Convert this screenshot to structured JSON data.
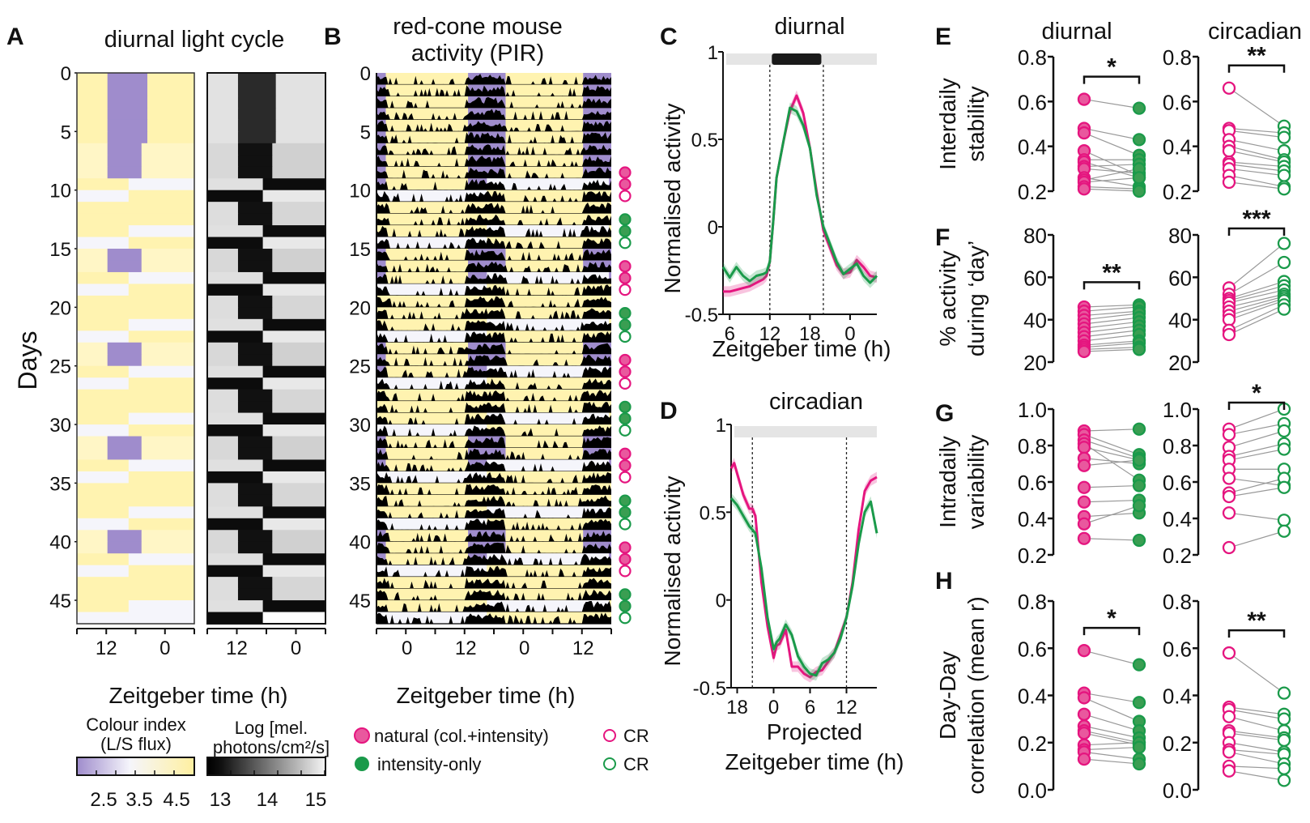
{
  "colors": {
    "magenta": "#e5157f",
    "magenta_fill": "#e9589e",
    "green": "#1a9a4a",
    "green_fill": "#3a9e52",
    "yellow": "#fff3b0",
    "purple": "#9f8ccc",
    "white_day": "#f5f5fb",
    "light_grey": "#e5e5e5",
    "dark": "#1a1a1a",
    "pair_line": "#999999"
  },
  "panelA": {
    "letter": "A",
    "title": "diurnal light cycle",
    "ylabel": "Days",
    "yticks": [
      "0",
      "5",
      "10",
      "15",
      "20",
      "25",
      "30",
      "35",
      "40",
      "45"
    ],
    "xticks": [
      "12",
      "0"
    ],
    "xlabel": "Zeitgeber time (h)",
    "colorbar1": {
      "title1": "Colour index",
      "title2": "(L/S flux)",
      "ticks": [
        "2.5",
        "3.5",
        "4.5"
      ]
    },
    "colorbar2": {
      "title1": "Log [mel.",
      "title2": "photons/cm²/s]",
      "ticks": [
        "13",
        "14",
        "15"
      ]
    }
  },
  "panelB": {
    "letter": "B",
    "title1": "red-cone mouse",
    "title2": "activity (PIR)",
    "yticks": [
      "0",
      "5",
      "10",
      "15",
      "20",
      "25",
      "30",
      "35",
      "40",
      "45"
    ],
    "xticks": [
      "0",
      "12",
      "0",
      "12"
    ],
    "xlabel": "Zeitgeber time (h)",
    "legend": {
      "natural": "natural (col.+intensity)",
      "intensity": "intensity-only",
      "cr1": "CR",
      "cr2": "CR"
    },
    "condition_markers": [
      {
        "day": 8,
        "type": "natural"
      },
      {
        "day": 9,
        "type": "natural"
      },
      {
        "day": 10,
        "type": "natural-CR"
      },
      {
        "day": 12,
        "type": "intensity"
      },
      {
        "day": 13,
        "type": "intensity"
      },
      {
        "day": 14,
        "type": "intensity-CR"
      },
      {
        "day": 16,
        "type": "natural"
      },
      {
        "day": 17,
        "type": "natural"
      },
      {
        "day": 18,
        "type": "natural-CR"
      },
      {
        "day": 20,
        "type": "intensity"
      },
      {
        "day": 21,
        "type": "intensity"
      },
      {
        "day": 22,
        "type": "intensity-CR"
      },
      {
        "day": 24,
        "type": "natural"
      },
      {
        "day": 25,
        "type": "natural"
      },
      {
        "day": 26,
        "type": "natural-CR"
      },
      {
        "day": 28,
        "type": "intensity"
      },
      {
        "day": 29,
        "type": "intensity"
      },
      {
        "day": 30,
        "type": "intensity-CR"
      },
      {
        "day": 32,
        "type": "natural"
      },
      {
        "day": 33,
        "type": "natural"
      },
      {
        "day": 34,
        "type": "natural-CR"
      },
      {
        "day": 36,
        "type": "intensity"
      },
      {
        "day": 37,
        "type": "intensity"
      },
      {
        "day": 38,
        "type": "intensity-CR"
      },
      {
        "day": 40,
        "type": "natural"
      },
      {
        "day": 41,
        "type": "natural"
      },
      {
        "day": 42,
        "type": "natural-CR"
      },
      {
        "day": 44,
        "type": "intensity"
      },
      {
        "day": 45,
        "type": "intensity"
      },
      {
        "day": 46,
        "type": "intensity-CR"
      }
    ]
  },
  "chart_data": [
    {
      "id": "C",
      "type": "line",
      "letter": "C",
      "title": "diurnal",
      "xlabel": "Zeitgeber time (h)",
      "ylabel": "Normalised activity",
      "xticks": [
        "6",
        "12",
        "18",
        "0"
      ],
      "yticks": [
        "-0.5",
        "0",
        "0.5",
        "1"
      ],
      "xlim": [
        5,
        28
      ],
      "ylim": [
        -0.5,
        1
      ],
      "dashed_lines_x": [
        12,
        20
      ],
      "light_bar": {
        "dark_from": 12.3,
        "dark_to": 19.7,
        "y": 0.97
      },
      "series": [
        {
          "name": "natural (col.+intensity)",
          "color": "magenta",
          "x": [
            5,
            6,
            7,
            8,
            9,
            10,
            11,
            11.5,
            12,
            12.5,
            13,
            14,
            15,
            16,
            17,
            18,
            19,
            20,
            21,
            22,
            23,
            24,
            25,
            26,
            27,
            28
          ],
          "y": [
            -0.37,
            -0.37,
            -0.36,
            -0.35,
            -0.34,
            -0.32,
            -0.3,
            -0.28,
            -0.2,
            0.03,
            0.28,
            0.48,
            0.66,
            0.75,
            0.65,
            0.45,
            0.2,
            -0.02,
            -0.12,
            -0.22,
            -0.27,
            -0.26,
            -0.19,
            -0.23,
            -0.28,
            -0.29
          ]
        },
        {
          "name": "intensity-only",
          "color": "green",
          "x": [
            5,
            6,
            7,
            8,
            9,
            10,
            11,
            11.5,
            12,
            12.5,
            13,
            14,
            15,
            16,
            17,
            18,
            19,
            20,
            21,
            22,
            23,
            24,
            25,
            26,
            27,
            28
          ],
          "y": [
            -0.23,
            -0.29,
            -0.23,
            -0.28,
            -0.31,
            -0.28,
            -0.27,
            -0.26,
            -0.2,
            0.03,
            0.28,
            0.48,
            0.68,
            0.66,
            0.58,
            0.45,
            0.18,
            0.0,
            -0.1,
            -0.2,
            -0.27,
            -0.24,
            -0.21,
            -0.28,
            -0.32,
            -0.28
          ]
        }
      ]
    },
    {
      "id": "D",
      "type": "line",
      "letter": "D",
      "title": "circadian",
      "xlabel1": "Projected",
      "xlabel2": "Zeitgeber time (h)",
      "ylabel": "Normalised activity",
      "xticks": [
        "18",
        "0",
        "6",
        "12"
      ],
      "yticks": [
        "-0.5",
        "0",
        "0.5",
        "1"
      ],
      "xlim": [
        -7,
        17
      ],
      "ylim": [
        -0.5,
        1
      ],
      "dashed_lines_x": [
        -3.5,
        12
      ],
      "series": [
        {
          "name": "natural (col.+intensity)",
          "color": "magenta",
          "x": [
            -7,
            -6.5,
            -6,
            -5,
            -4,
            -3.5,
            -3,
            -2,
            -1,
            0,
            0.5,
            1,
            2,
            3,
            4,
            5,
            6,
            7,
            8,
            9,
            10,
            11,
            12,
            13,
            14,
            15,
            16,
            17
          ],
          "y": [
            0.75,
            0.78,
            0.72,
            0.6,
            0.52,
            0.52,
            0.48,
            0.1,
            -0.15,
            -0.33,
            -0.26,
            -0.25,
            -0.17,
            -0.38,
            -0.38,
            -0.42,
            -0.44,
            -0.41,
            -0.4,
            -0.35,
            -0.3,
            -0.2,
            -0.1,
            0.1,
            0.4,
            0.62,
            0.68,
            0.7
          ]
        },
        {
          "name": "intensity-only",
          "color": "green",
          "x": [
            -7,
            -6.5,
            -6,
            -5,
            -4,
            -3.5,
            -3,
            -2,
            -1,
            0,
            0.5,
            1,
            2,
            3,
            4,
            5,
            6,
            7,
            8,
            9,
            10,
            11,
            12,
            13,
            14,
            15,
            16,
            17
          ],
          "y": [
            0.58,
            0.56,
            0.54,
            0.48,
            0.42,
            0.4,
            0.38,
            0.18,
            -0.1,
            -0.28,
            -0.24,
            -0.22,
            -0.14,
            -0.2,
            -0.32,
            -0.38,
            -0.42,
            -0.43,
            -0.36,
            -0.34,
            -0.3,
            -0.22,
            -0.1,
            0.08,
            0.32,
            0.5,
            0.56,
            0.38
          ]
        }
      ]
    },
    {
      "id": "E",
      "type": "scatter",
      "letter": "E",
      "ylabel1": "Interdaily",
      "ylabel2": "stability",
      "ylim": [
        0.2,
        0.8
      ],
      "yticks": [
        "0.2",
        "0.4",
        "0.6",
        "0.8"
      ],
      "column_titles": [
        "diurnal",
        "circadian"
      ],
      "diurnal": {
        "significance": "*",
        "natural": [
          0.61,
          0.48,
          0.46,
          0.38,
          0.34,
          0.33,
          0.31,
          0.3,
          0.26,
          0.25,
          0.24,
          0.22,
          0.21
        ],
        "intensity": [
          0.57,
          0.43,
          0.36,
          0.27,
          0.34,
          0.26,
          0.32,
          0.28,
          0.22,
          0.3,
          0.26,
          0.21,
          0.2
        ]
      },
      "circadian": {
        "significance": "**",
        "natural": [
          0.66,
          0.48,
          0.47,
          0.43,
          0.4,
          0.38,
          0.33,
          0.32,
          0.3,
          0.27,
          0.24
        ],
        "intensity": [
          0.49,
          0.46,
          0.44,
          0.38,
          0.34,
          0.33,
          0.31,
          0.29,
          0.27,
          0.22,
          0.21
        ]
      }
    },
    {
      "id": "F",
      "type": "scatter",
      "letter": "F",
      "ylabel1": "% activity",
      "ylabel2": "during ‘day’",
      "ylim": [
        20,
        80
      ],
      "yticks": [
        "20",
        "40",
        "60",
        "80"
      ],
      "diurnal": {
        "significance": "**",
        "natural": [
          46,
          44,
          42,
          40,
          38,
          36,
          34,
          32,
          30,
          28,
          27,
          26,
          25
        ],
        "intensity": [
          47,
          46,
          44,
          43,
          41,
          39,
          37,
          35,
          33,
          30,
          29,
          27,
          26
        ]
      },
      "circadian": {
        "significance": "***",
        "natural": [
          55,
          52,
          50,
          49,
          48,
          46,
          44,
          42,
          40,
          35,
          33
        ],
        "intensity": [
          76,
          67,
          58,
          56,
          54,
          52,
          51,
          50,
          49,
          47,
          45
        ]
      }
    },
    {
      "id": "G",
      "type": "scatter",
      "letter": "G",
      "ylabel1": "Intradaily",
      "ylabel2": "variability",
      "ylim": [
        0.2,
        1.0
      ],
      "yticks": [
        "0.2",
        "0.4",
        "0.6",
        "0.8",
        "1.0"
      ],
      "diurnal": {
        "significance": "",
        "natural": [
          0.88,
          0.86,
          0.83,
          0.81,
          0.79,
          0.73,
          0.69,
          0.57,
          0.49,
          0.41,
          0.37,
          0.29
        ],
        "intensity": [
          0.89,
          0.75,
          0.73,
          0.61,
          0.72,
          0.7,
          0.72,
          0.58,
          0.5,
          0.43,
          0.47,
          0.28
        ]
      },
      "circadian": {
        "significance": "*",
        "natural": [
          0.89,
          0.86,
          0.79,
          0.74,
          0.72,
          0.67,
          0.62,
          0.54,
          0.52,
          0.43,
          0.24
        ],
        "intensity": [
          1.0,
          0.92,
          0.88,
          0.81,
          0.78,
          0.67,
          0.58,
          0.62,
          0.57,
          0.39,
          0.33
        ]
      }
    },
    {
      "id": "H",
      "type": "scatter",
      "letter": "H",
      "ylabel1": "Day-Day",
      "ylabel2": "correlation (mean r)",
      "ylim": [
        0.0,
        0.8
      ],
      "yticks": [
        "0.0",
        "0.2",
        "0.4",
        "0.6",
        "0.8"
      ],
      "diurnal": {
        "significance": "*",
        "natural": [
          0.59,
          0.41,
          0.39,
          0.32,
          0.27,
          0.25,
          0.24,
          0.19,
          0.17,
          0.16,
          0.13
        ],
        "intensity": [
          0.53,
          0.37,
          0.29,
          0.25,
          0.22,
          0.2,
          0.19,
          0.2,
          0.18,
          0.13,
          0.11
        ]
      },
      "circadian": {
        "significance": "**",
        "natural": [
          0.58,
          0.35,
          0.34,
          0.31,
          0.25,
          0.24,
          0.2,
          0.17,
          0.16,
          0.1,
          0.08
        ],
        "intensity": [
          0.41,
          0.32,
          0.3,
          0.25,
          0.22,
          0.21,
          0.16,
          0.15,
          0.11,
          0.09,
          0.04
        ]
      }
    }
  ]
}
